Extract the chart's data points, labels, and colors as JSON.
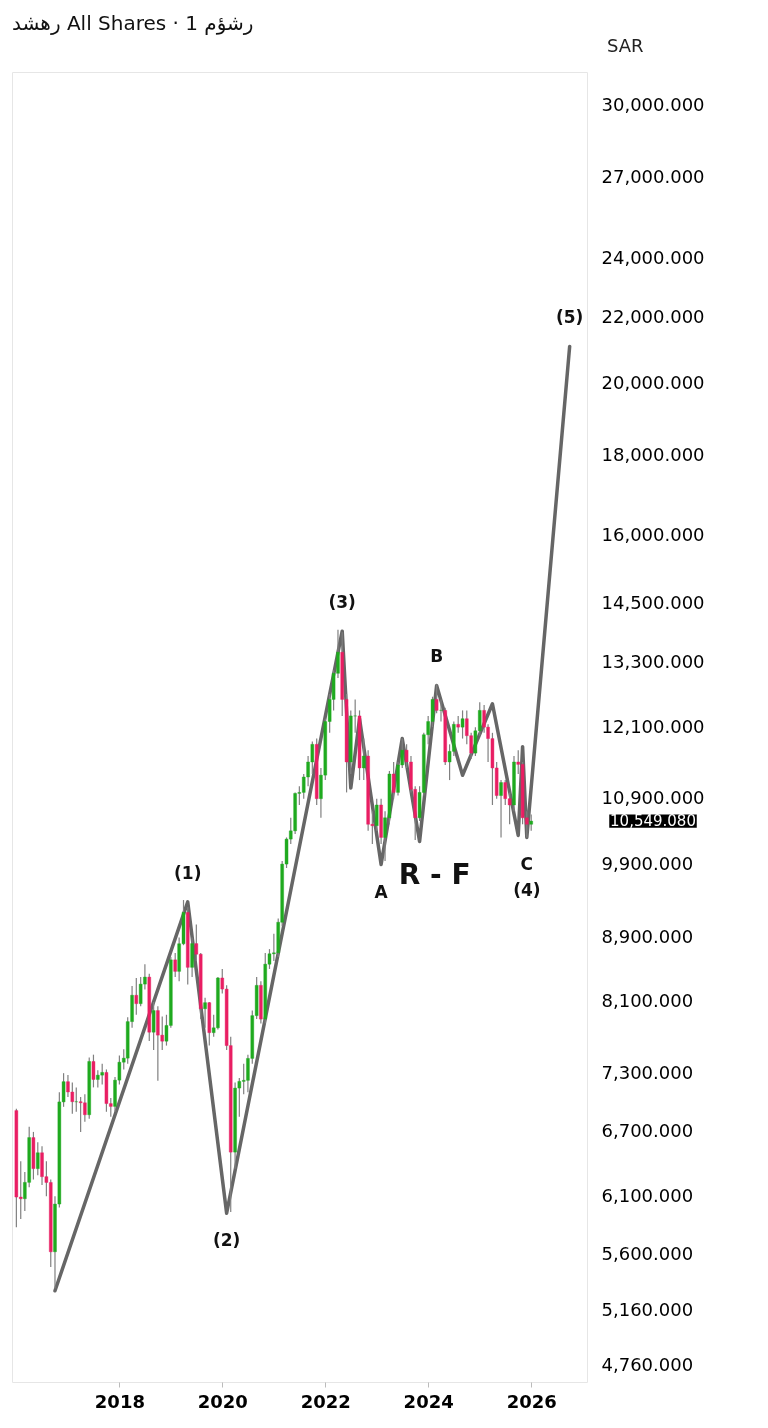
{
  "chart_data": {
    "type": "candlestick",
    "title": "رهشد All Shares · 1 رشؤم",
    "log": true,
    "grid": false,
    "xlim": [
      "2015-12",
      "2027-02"
    ],
    "xticks": [
      "2018",
      "2020",
      "2022",
      "2024",
      "2026"
    ],
    "ylim": [
      4650,
      31500
    ],
    "yticks": [
      {
        "value": 4760,
        "label": "4,760.000"
      },
      {
        "value": 5160,
        "label": "5,160.000"
      },
      {
        "value": 5600,
        "label": "5,600.000"
      },
      {
        "value": 6100,
        "label": "6,100.000"
      },
      {
        "value": 6700,
        "label": "6,700.000"
      },
      {
        "value": 7300,
        "label": "7,300.000"
      },
      {
        "value": 8100,
        "label": "8,100.000"
      },
      {
        "value": 8900,
        "label": "8,900.000"
      },
      {
        "value": 9900,
        "label": "9,900.000"
      },
      {
        "value": 10900,
        "label": "10,900.000"
      },
      {
        "value": 12100,
        "label": "12,100.000"
      },
      {
        "value": 13300,
        "label": "13,300.000"
      },
      {
        "value": 14500,
        "label": "14,500.000"
      },
      {
        "value": 16000,
        "label": "16,000.000"
      },
      {
        "value": 18000,
        "label": "18,000.000"
      },
      {
        "value": 20000,
        "label": "20,000.000"
      },
      {
        "value": 22000,
        "label": "22,000.000"
      },
      {
        "value": 24000,
        "label": "24,000.000"
      },
      {
        "value": 27000,
        "label": "27,000.000"
      },
      {
        "value": 30000,
        "label": "30,000.000"
      }
    ],
    "x": [
      "2016-01",
      "2016-02",
      "2016-03",
      "2016-04",
      "2016-05",
      "2016-06",
      "2016-07",
      "2016-08",
      "2016-09",
      "2016-10",
      "2016-11",
      "2016-12",
      "2017-01",
      "2017-02",
      "2017-03",
      "2017-04",
      "2017-05",
      "2017-06",
      "2017-07",
      "2017-08",
      "2017-09",
      "2017-10",
      "2017-11",
      "2017-12",
      "2018-01",
      "2018-02",
      "2018-03",
      "2018-04",
      "2018-05",
      "2018-06",
      "2018-07",
      "2018-08",
      "2018-09",
      "2018-10",
      "2018-11",
      "2018-12",
      "2019-01",
      "2019-02",
      "2019-03",
      "2019-04",
      "2019-05",
      "2019-06",
      "2019-07",
      "2019-08",
      "2019-09",
      "2019-10",
      "2019-11",
      "2019-12",
      "2020-01",
      "2020-02",
      "2020-03",
      "2020-04",
      "2020-05",
      "2020-06",
      "2020-07",
      "2020-08",
      "2020-09",
      "2020-10",
      "2020-11",
      "2020-12",
      "2021-01",
      "2021-02",
      "2021-03",
      "2021-04",
      "2021-05",
      "2021-06",
      "2021-07",
      "2021-08",
      "2021-09",
      "2021-10",
      "2021-11",
      "2021-12",
      "2022-01",
      "2022-02",
      "2022-03",
      "2022-04",
      "2022-05",
      "2022-06",
      "2022-07",
      "2022-08",
      "2022-09",
      "2022-10",
      "2022-11",
      "2022-12",
      "2023-01",
      "2023-02",
      "2023-03",
      "2023-04",
      "2023-05",
      "2023-06",
      "2023-07",
      "2023-08",
      "2023-09",
      "2023-10",
      "2023-11",
      "2023-12",
      "2024-01",
      "2024-02",
      "2024-03",
      "2024-04",
      "2024-05",
      "2024-06",
      "2024-07",
      "2024-08",
      "2024-09",
      "2024-10",
      "2024-11",
      "2024-12",
      "2025-01",
      "2025-02",
      "2025-03",
      "2025-04",
      "2025-05",
      "2025-06",
      "2025-07",
      "2025-08",
      "2025-09",
      "2025-10",
      "2025-11",
      "2025-12",
      "2026-01"
    ],
    "ohlc": [
      [
        6912,
        6930,
        5830,
        6092
      ],
      [
        6092,
        6420,
        5900,
        6077
      ],
      [
        6077,
        6320,
        5970,
        6224
      ],
      [
        6224,
        6750,
        6180,
        6645
      ],
      [
        6645,
        6700,
        6250,
        6350
      ],
      [
        6350,
        6600,
        6290,
        6499
      ],
      [
        6499,
        6560,
        6200,
        6276
      ],
      [
        6276,
        6420,
        6100,
        6223
      ],
      [
        6223,
        6250,
        5500,
        5624
      ],
      [
        5624,
        6100,
        5330,
        6030
      ],
      [
        6030,
        7100,
        6000,
        7000
      ],
      [
        7000,
        7300,
        6950,
        7210
      ],
      [
        7210,
        7280,
        7050,
        7102
      ],
      [
        7102,
        7200,
        6880,
        7002
      ],
      [
        7002,
        7150,
        6900,
        7002
      ],
      [
        7002,
        7050,
        6700,
        6991
      ],
      [
        6991,
        7080,
        6800,
        6870
      ],
      [
        6870,
        7470,
        6830,
        7426
      ],
      [
        7426,
        7500,
        7150,
        7233
      ],
      [
        7233,
        7330,
        7150,
        7279
      ],
      [
        7279,
        7400,
        7180,
        7308
      ],
      [
        7308,
        7340,
        6900,
        6983
      ],
      [
        6983,
        7040,
        6850,
        6954
      ],
      [
        6954,
        7260,
        6900,
        7226
      ],
      [
        7226,
        7490,
        7180,
        7418
      ],
      [
        7418,
        7560,
        7340,
        7462
      ],
      [
        7462,
        7920,
        7400,
        7871
      ],
      [
        7871,
        8290,
        7800,
        8180
      ],
      [
        8180,
        8390,
        7950,
        8080
      ],
      [
        8080,
        8400,
        8050,
        8314
      ],
      [
        8314,
        8560,
        8250,
        8400
      ],
      [
        8400,
        8440,
        7650,
        7750
      ],
      [
        7750,
        8100,
        7550,
        7999
      ],
      [
        7999,
        8050,
        7220,
        7717
      ],
      [
        7717,
        7930,
        7550,
        7649
      ],
      [
        7649,
        7950,
        7600,
        7827
      ],
      [
        7827,
        8650,
        7800,
        8614
      ],
      [
        8614,
        8700,
        8400,
        8470
      ],
      [
        8470,
        8900,
        8350,
        8819
      ],
      [
        8819,
        9400,
        8800,
        9232
      ],
      [
        9232,
        9300,
        8310,
        8520
      ],
      [
        8520,
        8900,
        8400,
        8821
      ],
      [
        8821,
        9070,
        8600,
        8685
      ],
      [
        8685,
        8700,
        7900,
        8020
      ],
      [
        8020,
        8150,
        7800,
        8092
      ],
      [
        8092,
        8100,
        7600,
        7745
      ],
      [
        7745,
        7950,
        7700,
        7800
      ],
      [
        7800,
        8400,
        7780,
        8389
      ],
      [
        8389,
        8500,
        8200,
        8254
      ],
      [
        8254,
        8300,
        7550,
        7600
      ],
      [
        7600,
        7700,
        5960,
        6505
      ],
      [
        6505,
        7200,
        6350,
        7143
      ],
      [
        7143,
        7250,
        6850,
        7213
      ],
      [
        7213,
        7400,
        7080,
        7224
      ],
      [
        7224,
        7500,
        7100,
        7459
      ],
      [
        7459,
        8000,
        7400,
        7940
      ],
      [
        7940,
        8400,
        7900,
        8299
      ],
      [
        8299,
        8350,
        7850,
        7900
      ],
      [
        7900,
        8700,
        7850,
        8560
      ],
      [
        8560,
        8750,
        8500,
        8690
      ],
      [
        8690,
        8950,
        8600,
        8703
      ],
      [
        8703,
        9150,
        8650,
        9100
      ],
      [
        9100,
        9950,
        9050,
        9907
      ],
      [
        9907,
        10300,
        9850,
        10275
      ],
      [
        10275,
        10600,
        10200,
        10400
      ],
      [
        10400,
        11000,
        10350,
        10984
      ],
      [
        10984,
        11100,
        10800,
        11000
      ],
      [
        11000,
        11300,
        10900,
        11250
      ],
      [
        11250,
        11600,
        11100,
        11500
      ],
      [
        11500,
        11850,
        11300,
        11800
      ],
      [
        11800,
        11900,
        10800,
        10900
      ],
      [
        10900,
        11400,
        10600,
        11281
      ],
      [
        11281,
        12250,
        11200,
        12200
      ],
      [
        12200,
        12700,
        12000,
        12600
      ],
      [
        12600,
        13150,
        12400,
        13090
      ],
      [
        13090,
        13950,
        13000,
        13500
      ],
      [
        13500,
        13900,
        12300,
        12600
      ],
      [
        12600,
        12700,
        11000,
        11500
      ],
      [
        11500,
        12400,
        11300,
        12300
      ],
      [
        12300,
        12600,
        12000,
        12300
      ],
      [
        12300,
        12400,
        11200,
        11400
      ],
      [
        11400,
        11900,
        11200,
        11600
      ],
      [
        11600,
        11700,
        10400,
        10500
      ],
      [
        10500,
        10700,
        10200,
        10478
      ],
      [
        10478,
        10900,
        10400,
        10800
      ],
      [
        10800,
        10900,
        10200,
        10300
      ],
      [
        10300,
        10700,
        9950,
        10600
      ],
      [
        10600,
        11350,
        10500,
        11300
      ],
      [
        11300,
        11500,
        10900,
        11000
      ],
      [
        11000,
        11500,
        10950,
        11450
      ],
      [
        11450,
        11900,
        11400,
        11700
      ],
      [
        11700,
        11800,
        11400,
        11500
      ],
      [
        11500,
        11600,
        11000,
        11050
      ],
      [
        11050,
        11100,
        10260,
        10600
      ],
      [
        10600,
        11100,
        10550,
        11000
      ],
      [
        11000,
        12000,
        10950,
        11967
      ],
      [
        11967,
        12300,
        11800,
        12200
      ],
      [
        12200,
        12650,
        12100,
        12600
      ],
      [
        12600,
        12880,
        12350,
        12400
      ],
      [
        12400,
        12600,
        12200,
        12400
      ],
      [
        12400,
        12450,
        11450,
        11500
      ],
      [
        11500,
        11800,
        11200,
        11680
      ],
      [
        11680,
        12200,
        11600,
        12150
      ],
      [
        12150,
        12300,
        12000,
        12100
      ],
      [
        12100,
        12400,
        11900,
        12250
      ],
      [
        12250,
        12400,
        11800,
        11950
      ],
      [
        11950,
        12000,
        11550,
        11650
      ],
      [
        11650,
        12100,
        11600,
        12036
      ],
      [
        12036,
        12550,
        11950,
        12400
      ],
      [
        12400,
        12500,
        12000,
        12100
      ],
      [
        12100,
        12150,
        11500,
        11900
      ],
      [
        11900,
        12000,
        10800,
        11400
      ],
      [
        11400,
        11500,
        10900,
        10950
      ],
      [
        10950,
        11200,
        10300,
        11160
      ],
      [
        11160,
        11200,
        10800,
        10900
      ],
      [
        10900,
        11000,
        10500,
        10800
      ],
      [
        10800,
        11600,
        10700,
        11500
      ],
      [
        11500,
        11700,
        11300,
        11460
      ],
      [
        11460,
        11500,
        10500,
        10600
      ],
      [
        10600,
        10700,
        10300,
        10500
      ],
      [
        10500,
        10650,
        10400,
        10549
      ]
    ],
    "colors": [
      "#e91e63",
      "#e91e63",
      "#1faa1f",
      "#1faa1f",
      "#e91e63",
      "#1faa1f",
      "#e91e63",
      "#e91e63",
      "#e91e63",
      "#1faa1f",
      "#1faa1f",
      "#1faa1f",
      "#e91e63",
      "#e91e63",
      "#1faa1f",
      "#e91e63",
      "#e91e63",
      "#1faa1f",
      "#e91e63",
      "#1faa1f",
      "#1faa1f",
      "#e91e63",
      "#e91e63",
      "#1faa1f",
      "#1faa1f",
      "#1faa1f",
      "#1faa1f",
      "#1faa1f",
      "#e91e63",
      "#1faa1f",
      "#1faa1f",
      "#e91e63",
      "#1faa1f",
      "#e91e63",
      "#e91e63",
      "#1faa1f",
      "#1faa1f",
      "#e91e63",
      "#1faa1f",
      "#1faa1f",
      "#e91e63",
      "#1faa1f",
      "#e91e63",
      "#e91e63",
      "#1faa1f",
      "#e91e63",
      "#1faa1f",
      "#1faa1f",
      "#e91e63",
      "#e91e63",
      "#e91e63",
      "#1faa1f",
      "#1faa1f",
      "#1faa1f",
      "#1faa1f",
      "#1faa1f",
      "#1faa1f",
      "#e91e63",
      "#1faa1f",
      "#1faa1f",
      "#1faa1f",
      "#1faa1f",
      "#1faa1f",
      "#1faa1f",
      "#1faa1f",
      "#1faa1f",
      "#1faa1f",
      "#1faa1f",
      "#1faa1f",
      "#1faa1f",
      "#e91e63",
      "#1faa1f",
      "#1faa1f",
      "#1faa1f",
      "#1faa1f",
      "#1faa1f",
      "#e91e63",
      "#e91e63",
      "#1faa1f",
      "#1faa1f",
      "#e91e63",
      "#1faa1f",
      "#e91e63",
      "#e91e63",
      "#1faa1f",
      "#e91e63",
      "#1faa1f",
      "#1faa1f",
      "#e91e63",
      "#1faa1f",
      "#1faa1f",
      "#e91e63",
      "#e91e63",
      "#e91e63",
      "#1faa1f",
      "#1faa1f",
      "#1faa1f",
      "#1faa1f",
      "#e91e63",
      "#1faa1f",
      "#e91e63",
      "#1faa1f",
      "#1faa1f",
      "#e91e63",
      "#1faa1f",
      "#e91e63",
      "#e91e63",
      "#1faa1f",
      "#1faa1f",
      "#e91e63",
      "#e91e63",
      "#e91e63",
      "#e91e63",
      "#1faa1f",
      "#e91e63",
      "#e91e63",
      "#1faa1f",
      "#e91e63",
      "#e91e63",
      "#e91e63",
      "#1faa1f"
    ],
    "series": [
      {
        "type": "line",
        "color": "#666666",
        "x": [
          "2016-10",
          "2019-05",
          "2020-02",
          "2022-05",
          "2022-07",
          "2022-09",
          "2023-02",
          "2023-07",
          "2023-11",
          "2024-03",
          "2024-09",
          "2025-04",
          "2025-10",
          "2025-11",
          "2025-12",
          "2026-10"
        ],
        "values": [
          5313,
          9375,
          5950,
          13920,
          11070,
          12250,
          9900,
          11900,
          10240,
          12860,
          11280,
          12520,
          10330,
          11760,
          10300,
          21100
        ]
      }
    ],
    "annotations": [
      "SAR",
      "10,549.080",
      "R - F",
      {
        "text": "(1)",
        "x": "2019-05",
        "y": 9375
      },
      {
        "text": "(2)",
        "x": "2020-02",
        "y": 5950
      },
      {
        "text": "(3)",
        "x": "2022-05",
        "y": 13920
      },
      {
        "text": "A",
        "x": "2023-02",
        "y": 9900
      },
      {
        "text": "B",
        "x": "2024-03",
        "y": 12860
      },
      {
        "text": "C",
        "x": "2025-12",
        "y": 10300
      },
      {
        "text": "(4)",
        "x": "2025-12",
        "y": 10300
      },
      {
        "text": "(5)",
        "x": "2026-10",
        "y": 21100
      }
    ]
  }
}
